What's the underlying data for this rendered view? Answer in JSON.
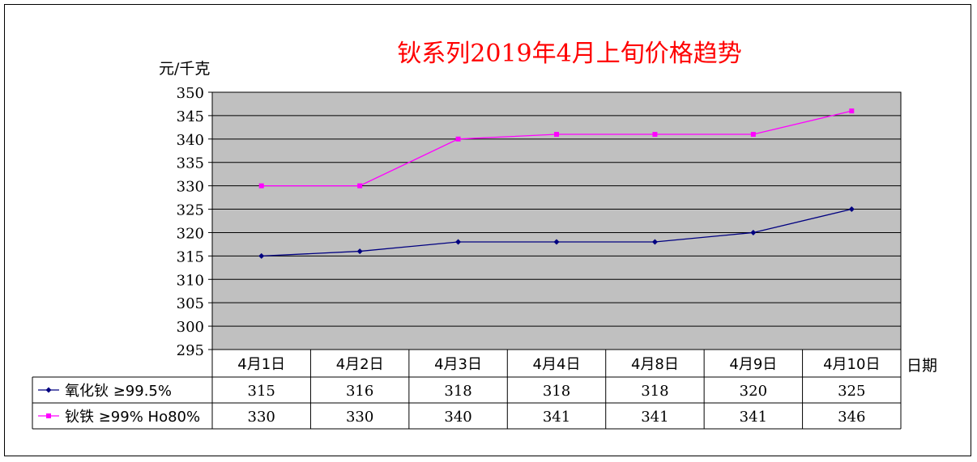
{
  "chart_data": {
    "type": "line",
    "title": "钬系列2019年4月上旬价格趋势",
    "ylabel": "元/千克",
    "xlabel": "日期",
    "ylim": [
      295,
      350
    ],
    "ytick_step": 5,
    "grid": true,
    "legend": "table-bottom",
    "categories": [
      "4月1日",
      "4月2日",
      "4月3日",
      "4月4日",
      "4月8日",
      "4月9日",
      "4月10日"
    ],
    "series": [
      {
        "name": "氧化钬 ≥99.5%",
        "color": "#000080",
        "marker": "diamond",
        "values": [
          315,
          316,
          318,
          318,
          318,
          320,
          325
        ]
      },
      {
        "name": "钬铁 ≥99% Ho80%",
        "color": "#ff00ff",
        "marker": "square",
        "values": [
          330,
          330,
          340,
          341,
          341,
          341,
          346
        ]
      }
    ],
    "colors": {
      "plot_bg": "#c0c0c0",
      "title": "#ff0000"
    }
  }
}
